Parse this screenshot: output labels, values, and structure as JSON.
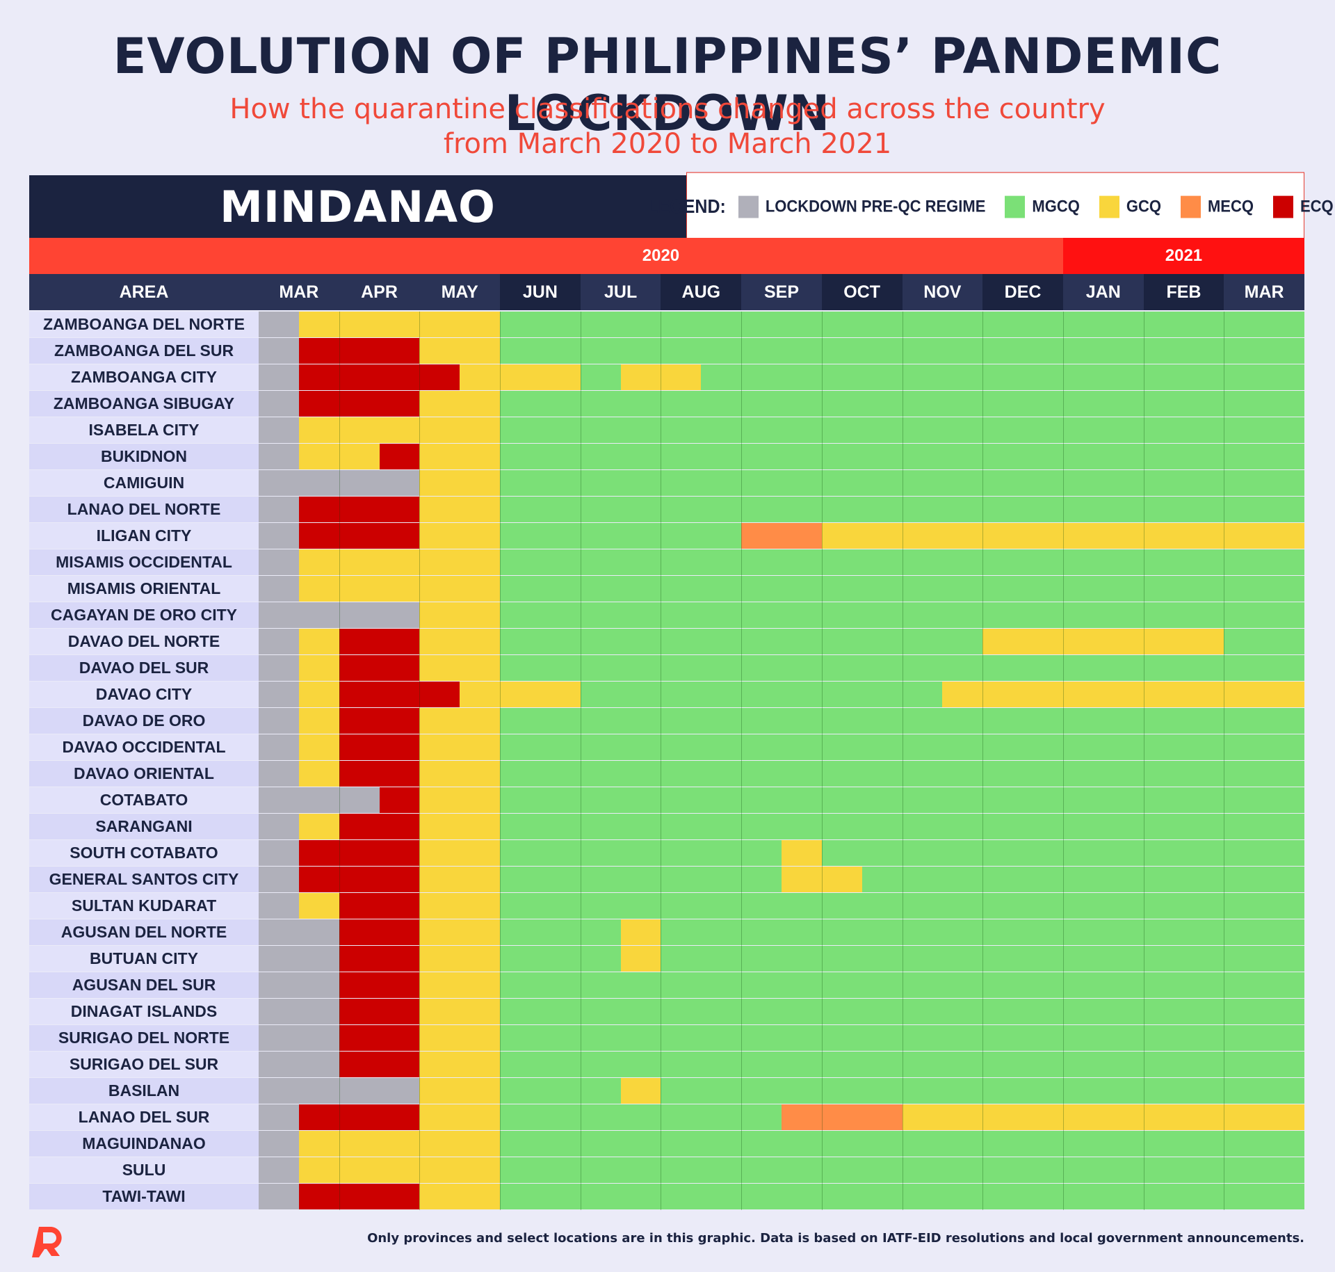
{
  "title": "EVOLUTION OF PHILIPPINES’ PANDEMIC LOCKDOWN",
  "subtitle_lines": [
    "How the quarantine classifications changed across the country",
    "from March 2020 to March 2021"
  ],
  "region": "MINDANAO",
  "legend": {
    "label": "LEGEND:",
    "items": [
      {
        "key": "PRE",
        "label": "LOCKDOWN PRE-QC REGIME",
        "color": "#b0b0ba"
      },
      {
        "key": "MGCQ",
        "label": "MGCQ",
        "color": "#7be077"
      },
      {
        "key": "GCQ",
        "label": "GCQ",
        "color": "#f9d63c"
      },
      {
        "key": "MECQ",
        "label": "MECQ",
        "color": "#ff8c47"
      },
      {
        "key": "ECQ",
        "label": "ECQ",
        "color": "#cc0000"
      }
    ]
  },
  "colors": {
    "header_navy": "#1b2340",
    "header_navy_alt": "#2a3356",
    "year_2020": "#ff4433",
    "year_2021": "#ff1111",
    "area_row": "#e2e2fa",
    "area_row_alt": "#d8d8f8"
  },
  "footnote": "Only provinces and select locations are in this graphic. Data is based on IATF-EID resolutions and local government announcements.",
  "chart_data": {
    "type": "table",
    "years": [
      {
        "label": "2020",
        "start": 0,
        "end": 10
      },
      {
        "label": "2021",
        "start": 10,
        "end": 13
      }
    ],
    "area_header": "AREA",
    "months": [
      "MAR",
      "APR",
      "MAY",
      "JUN",
      "JUL",
      "AUG",
      "SEP",
      "OCT",
      "NOV",
      "DEC",
      "JAN",
      "FEB",
      "MAR"
    ],
    "note": "",
    "rows": [
      {
        "area": "ZAMBOANGA DEL NORTE",
        "segments": [
          [
            "PRE",
            0,
            0.5
          ],
          [
            "GCQ",
            0.5,
            3
          ],
          [
            "MGCQ",
            3,
            13
          ]
        ]
      },
      {
        "area": "ZAMBOANGA DEL SUR",
        "segments": [
          [
            "PRE",
            0,
            0.5
          ],
          [
            "ECQ",
            0.5,
            2
          ],
          [
            "GCQ",
            2,
            3
          ],
          [
            "MGCQ",
            3,
            13
          ]
        ]
      },
      {
        "area": "ZAMBOANGA CITY",
        "segments": [
          [
            "PRE",
            0,
            0.5
          ],
          [
            "ECQ",
            0.5,
            2.5
          ],
          [
            "GCQ",
            2.5,
            4
          ],
          [
            "MGCQ",
            4,
            4.5
          ],
          [
            "GCQ",
            4.5,
            5.5
          ],
          [
            "MGCQ",
            5.5,
            13
          ]
        ]
      },
      {
        "area": "ZAMBOANGA SIBUGAY",
        "segments": [
          [
            "PRE",
            0,
            0.5
          ],
          [
            "ECQ",
            0.5,
            2
          ],
          [
            "GCQ",
            2,
            3
          ],
          [
            "MGCQ",
            3,
            13
          ]
        ]
      },
      {
        "area": "ISABELA CITY",
        "segments": [
          [
            "PRE",
            0,
            0.5
          ],
          [
            "GCQ",
            0.5,
            3
          ],
          [
            "MGCQ",
            3,
            13
          ]
        ]
      },
      {
        "area": "BUKIDNON",
        "segments": [
          [
            "PRE",
            0,
            0.5
          ],
          [
            "GCQ",
            0.5,
            1.5
          ],
          [
            "ECQ",
            1.5,
            2
          ],
          [
            "GCQ",
            2,
            3
          ],
          [
            "MGCQ",
            3,
            13
          ]
        ]
      },
      {
        "area": "CAMIGUIN",
        "segments": [
          [
            "PRE",
            0,
            2
          ],
          [
            "GCQ",
            2,
            3
          ],
          [
            "MGCQ",
            3,
            13
          ]
        ]
      },
      {
        "area": "LANAO DEL NORTE",
        "segments": [
          [
            "PRE",
            0,
            0.5
          ],
          [
            "ECQ",
            0.5,
            2
          ],
          [
            "GCQ",
            2,
            3
          ],
          [
            "MGCQ",
            3,
            13
          ]
        ]
      },
      {
        "area": "ILIGAN CITY",
        "segments": [
          [
            "PRE",
            0,
            0.5
          ],
          [
            "ECQ",
            0.5,
            2
          ],
          [
            "GCQ",
            2,
            3
          ],
          [
            "MGCQ",
            3,
            6
          ],
          [
            "MECQ",
            6,
            7
          ],
          [
            "GCQ",
            7,
            13
          ]
        ]
      },
      {
        "area": "MISAMIS OCCIDENTAL",
        "segments": [
          [
            "PRE",
            0,
            0.5
          ],
          [
            "GCQ",
            0.5,
            3
          ],
          [
            "MGCQ",
            3,
            13
          ]
        ]
      },
      {
        "area": "MISAMIS ORIENTAL",
        "segments": [
          [
            "PRE",
            0,
            0.5
          ],
          [
            "GCQ",
            0.5,
            3
          ],
          [
            "MGCQ",
            3,
            13
          ]
        ]
      },
      {
        "area": "CAGAYAN DE ORO CITY",
        "segments": [
          [
            "PRE",
            0,
            2
          ],
          [
            "GCQ",
            2,
            3
          ],
          [
            "MGCQ",
            3,
            13
          ]
        ]
      },
      {
        "area": "DAVAO DEL NORTE",
        "segments": [
          [
            "PRE",
            0,
            0.5
          ],
          [
            "GCQ",
            0.5,
            1
          ],
          [
            "ECQ",
            1,
            2
          ],
          [
            "GCQ",
            2,
            3
          ],
          [
            "MGCQ",
            3,
            9
          ],
          [
            "GCQ",
            9,
            12
          ],
          [
            "MGCQ",
            12,
            13
          ]
        ]
      },
      {
        "area": "DAVAO DEL SUR",
        "segments": [
          [
            "PRE",
            0,
            0.5
          ],
          [
            "GCQ",
            0.5,
            1
          ],
          [
            "ECQ",
            1,
            2
          ],
          [
            "GCQ",
            2,
            3
          ],
          [
            "MGCQ",
            3,
            13
          ]
        ]
      },
      {
        "area": "DAVAO CITY",
        "segments": [
          [
            "PRE",
            0,
            0.5
          ],
          [
            "GCQ",
            0.5,
            1
          ],
          [
            "ECQ",
            1,
            2.5
          ],
          [
            "GCQ",
            2.5,
            4
          ],
          [
            "MGCQ",
            4,
            8.5
          ],
          [
            "GCQ",
            8.5,
            13
          ]
        ]
      },
      {
        "area": "DAVAO DE ORO",
        "segments": [
          [
            "PRE",
            0,
            0.5
          ],
          [
            "GCQ",
            0.5,
            1
          ],
          [
            "ECQ",
            1,
            2
          ],
          [
            "GCQ",
            2,
            3
          ],
          [
            "MGCQ",
            3,
            13
          ]
        ]
      },
      {
        "area": "DAVAO OCCIDENTAL",
        "segments": [
          [
            "PRE",
            0,
            0.5
          ],
          [
            "GCQ",
            0.5,
            1
          ],
          [
            "ECQ",
            1,
            2
          ],
          [
            "GCQ",
            2,
            3
          ],
          [
            "MGCQ",
            3,
            13
          ]
        ]
      },
      {
        "area": "DAVAO ORIENTAL",
        "segments": [
          [
            "PRE",
            0,
            0.5
          ],
          [
            "GCQ",
            0.5,
            1
          ],
          [
            "ECQ",
            1,
            2
          ],
          [
            "GCQ",
            2,
            3
          ],
          [
            "MGCQ",
            3,
            13
          ]
        ]
      },
      {
        "area": "COTABATO",
        "segments": [
          [
            "PRE",
            0,
            1.5
          ],
          [
            "ECQ",
            1.5,
            2
          ],
          [
            "GCQ",
            2,
            3
          ],
          [
            "MGCQ",
            3,
            13
          ]
        ]
      },
      {
        "area": "SARANGANI",
        "segments": [
          [
            "PRE",
            0,
            0.5
          ],
          [
            "GCQ",
            0.5,
            1
          ],
          [
            "ECQ",
            1,
            2
          ],
          [
            "GCQ",
            2,
            3
          ],
          [
            "MGCQ",
            3,
            13
          ]
        ]
      },
      {
        "area": "SOUTH COTABATO",
        "segments": [
          [
            "PRE",
            0,
            0.5
          ],
          [
            "ECQ",
            0.5,
            2
          ],
          [
            "GCQ",
            2,
            3
          ],
          [
            "MGCQ",
            3,
            6.5
          ],
          [
            "GCQ",
            6.5,
            7
          ],
          [
            "MGCQ",
            7,
            13
          ]
        ]
      },
      {
        "area": "GENERAL SANTOS CITY",
        "segments": [
          [
            "PRE",
            0,
            0.5
          ],
          [
            "ECQ",
            0.5,
            2
          ],
          [
            "GCQ",
            2,
            3
          ],
          [
            "MGCQ",
            3,
            6.5
          ],
          [
            "GCQ",
            6.5,
            7.5
          ],
          [
            "MGCQ",
            7.5,
            13
          ]
        ]
      },
      {
        "area": "SULTAN KUDARAT",
        "segments": [
          [
            "PRE",
            0,
            0.5
          ],
          [
            "GCQ",
            0.5,
            1
          ],
          [
            "ECQ",
            1,
            2
          ],
          [
            "GCQ",
            2,
            3
          ],
          [
            "MGCQ",
            3,
            13
          ]
        ]
      },
      {
        "area": "AGUSAN DEL NORTE",
        "segments": [
          [
            "PRE",
            0,
            1
          ],
          [
            "ECQ",
            1,
            2
          ],
          [
            "GCQ",
            2,
            3
          ],
          [
            "MGCQ",
            3,
            4.5
          ],
          [
            "GCQ",
            4.5,
            5
          ],
          [
            "MGCQ",
            5,
            13
          ]
        ]
      },
      {
        "area": "BUTUAN CITY",
        "segments": [
          [
            "PRE",
            0,
            1
          ],
          [
            "ECQ",
            1,
            2
          ],
          [
            "GCQ",
            2,
            3
          ],
          [
            "MGCQ",
            3,
            4.5
          ],
          [
            "GCQ",
            4.5,
            5
          ],
          [
            "MGCQ",
            5,
            13
          ]
        ]
      },
      {
        "area": "AGUSAN DEL SUR",
        "segments": [
          [
            "PRE",
            0,
            1
          ],
          [
            "ECQ",
            1,
            2
          ],
          [
            "GCQ",
            2,
            3
          ],
          [
            "MGCQ",
            3,
            13
          ]
        ]
      },
      {
        "area": "DINAGAT ISLANDS",
        "segments": [
          [
            "PRE",
            0,
            1
          ],
          [
            "ECQ",
            1,
            2
          ],
          [
            "GCQ",
            2,
            3
          ],
          [
            "MGCQ",
            3,
            13
          ]
        ]
      },
      {
        "area": "SURIGAO DEL NORTE",
        "segments": [
          [
            "PRE",
            0,
            1
          ],
          [
            "ECQ",
            1,
            2
          ],
          [
            "GCQ",
            2,
            3
          ],
          [
            "MGCQ",
            3,
            13
          ]
        ]
      },
      {
        "area": "SURIGAO DEL SUR",
        "segments": [
          [
            "PRE",
            0,
            1
          ],
          [
            "ECQ",
            1,
            2
          ],
          [
            "GCQ",
            2,
            3
          ],
          [
            "MGCQ",
            3,
            13
          ]
        ]
      },
      {
        "area": "BASILAN",
        "segments": [
          [
            "PRE",
            0,
            2
          ],
          [
            "GCQ",
            2,
            3
          ],
          [
            "MGCQ",
            3,
            4.5
          ],
          [
            "GCQ",
            4.5,
            5
          ],
          [
            "MGCQ",
            5,
            13
          ]
        ]
      },
      {
        "area": "LANAO DEL SUR",
        "segments": [
          [
            "PRE",
            0,
            0.5
          ],
          [
            "ECQ",
            0.5,
            2
          ],
          [
            "GCQ",
            2,
            3
          ],
          [
            "MGCQ",
            3,
            6.5
          ],
          [
            "MECQ",
            6.5,
            8
          ],
          [
            "GCQ",
            8,
            13
          ]
        ]
      },
      {
        "area": "MAGUINDANAO",
        "segments": [
          [
            "PRE",
            0,
            0.5
          ],
          [
            "GCQ",
            0.5,
            3
          ],
          [
            "MGCQ",
            3,
            13
          ]
        ]
      },
      {
        "area": "SULU",
        "segments": [
          [
            "PRE",
            0,
            0.5
          ],
          [
            "GCQ",
            0.5,
            3
          ],
          [
            "MGCQ",
            3,
            13
          ]
        ]
      },
      {
        "area": "TAWI-TAWI",
        "segments": [
          [
            "PRE",
            0,
            0.5
          ],
          [
            "ECQ",
            0.5,
            2
          ],
          [
            "GCQ",
            2,
            3
          ],
          [
            "MGCQ",
            3,
            13
          ]
        ]
      }
    ]
  }
}
